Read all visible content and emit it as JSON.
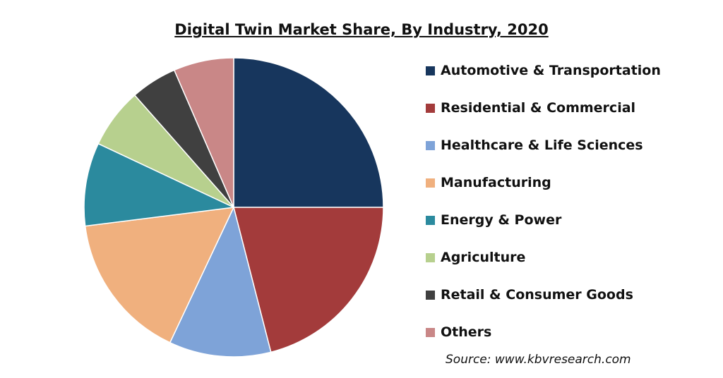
{
  "chart_data": {
    "type": "pie",
    "title": "Digital Twin Market Share, By Industry, 2020",
    "slices": [
      {
        "label": "Automotive & Transportation",
        "value": 25.0,
        "color": "#17365d"
      },
      {
        "label": "Residential & Commercial",
        "value": 21.0,
        "color": "#a33b3b"
      },
      {
        "label": "Healthcare & Life Sciences",
        "value": 11.0,
        "color": "#7ea3d8"
      },
      {
        "label": "Manufacturing",
        "value": 16.0,
        "color": "#f0b07e"
      },
      {
        "label": "Energy & Power",
        "value": 9.0,
        "color": "#2b8a9e"
      },
      {
        "label": "Agriculture",
        "value": 6.5,
        "color": "#b7d08e"
      },
      {
        "label": "Retail & Consumer Goods",
        "value": 5.0,
        "color": "#404040"
      },
      {
        "label": "Others",
        "value": 6.5,
        "color": "#c98787"
      }
    ],
    "legend_position": "right",
    "source": "Source: www.kbvresearch.com"
  }
}
